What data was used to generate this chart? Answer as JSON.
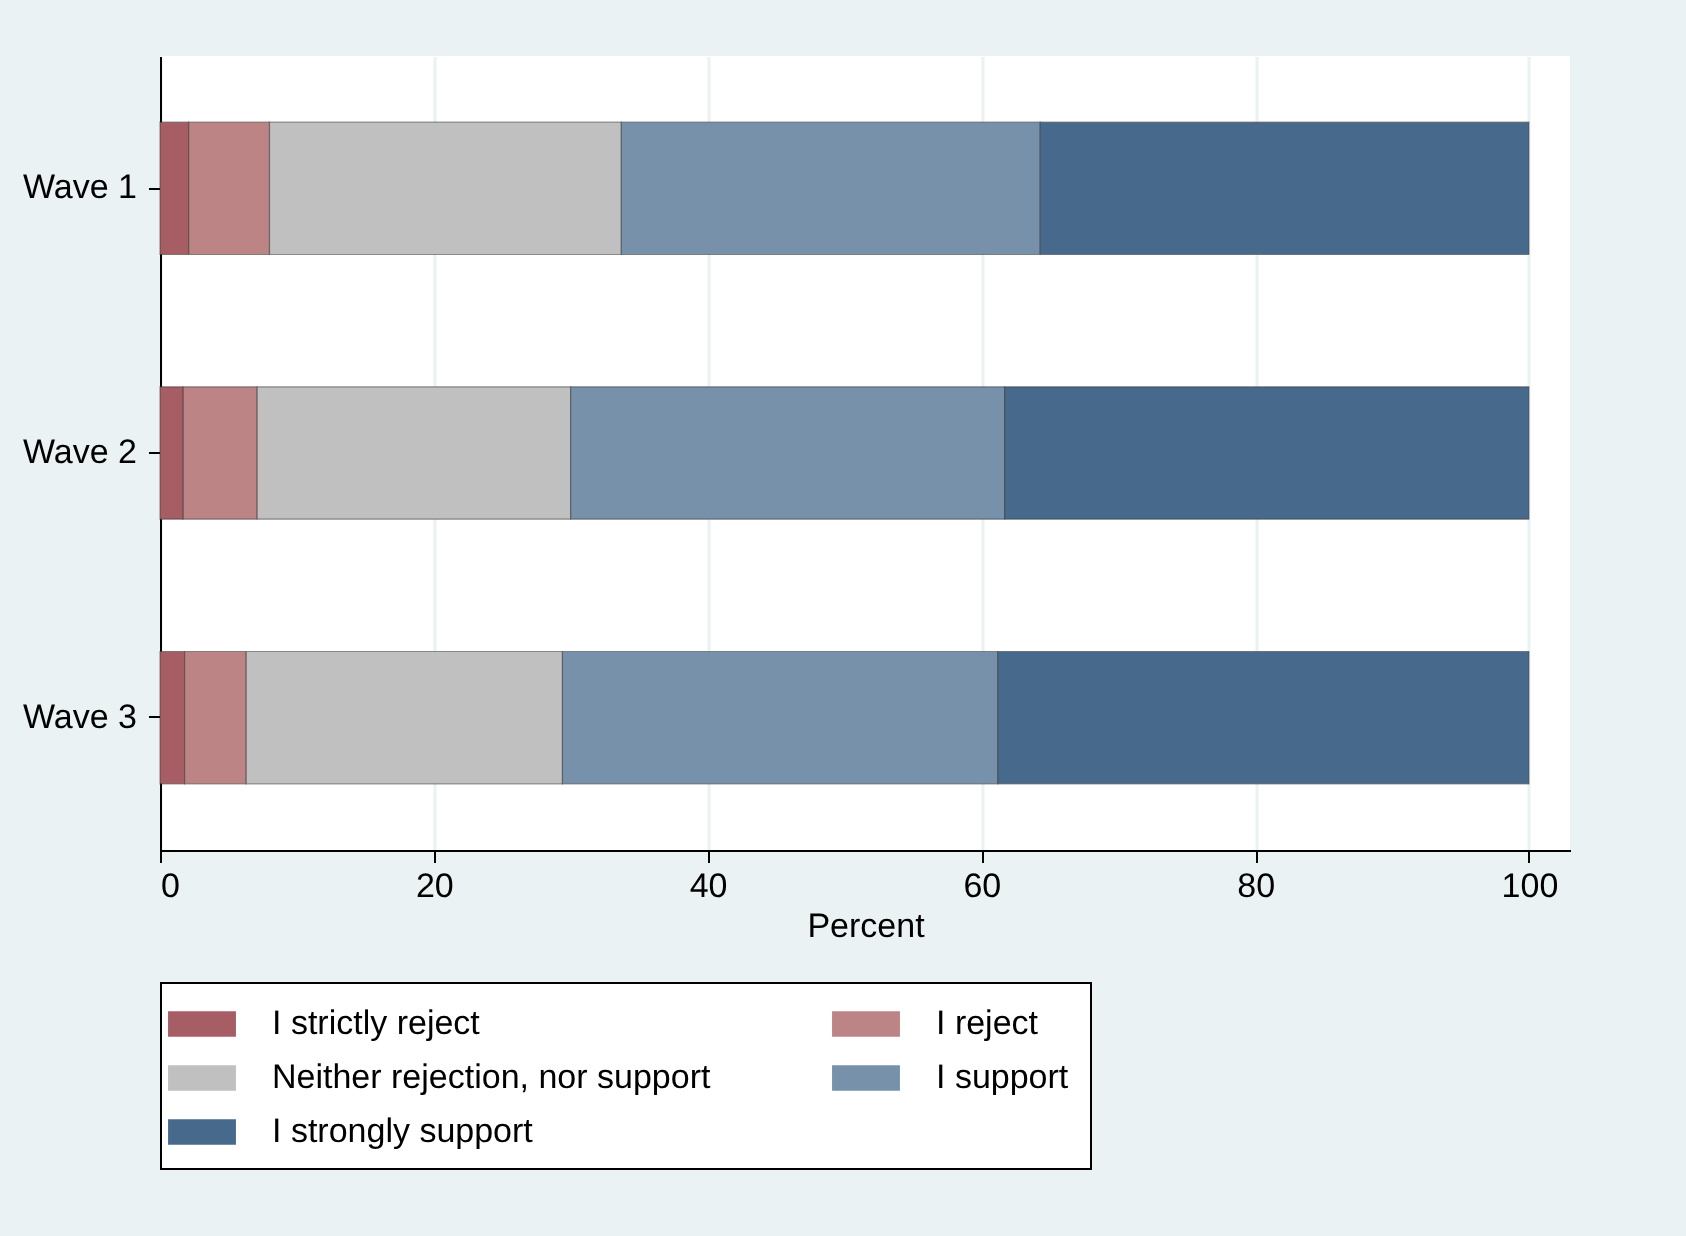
{
  "chart_data": {
    "type": "bar",
    "orientation": "horizontal",
    "stacked": true,
    "xlabel": "Percent",
    "categories": [
      "Wave 1",
      "Wave 2",
      "Wave 3"
    ],
    "series": [
      {
        "name": "I strictly reject",
        "color": "#a65d63",
        "values": [
          2.1,
          1.7,
          1.8
        ]
      },
      {
        "name": "I reject",
        "color": "#bc8485",
        "values": [
          5.9,
          5.4,
          4.5
        ]
      },
      {
        "name": "Neither rejection, nor support",
        "color": "#c0c0c0",
        "values": [
          25.7,
          22.9,
          23.1
        ]
      },
      {
        "name": "I support",
        "color": "#7891aa",
        "values": [
          30.6,
          31.7,
          31.8
        ]
      },
      {
        "name": "I strongly support",
        "color": "#476a8c",
        "values": [
          35.7,
          38.3,
          38.8
        ]
      }
    ],
    "xlim": [
      0,
      103
    ],
    "xticks": [
      0,
      20,
      40,
      60,
      80,
      100
    ],
    "grid": "x",
    "legend": "bottom"
  }
}
